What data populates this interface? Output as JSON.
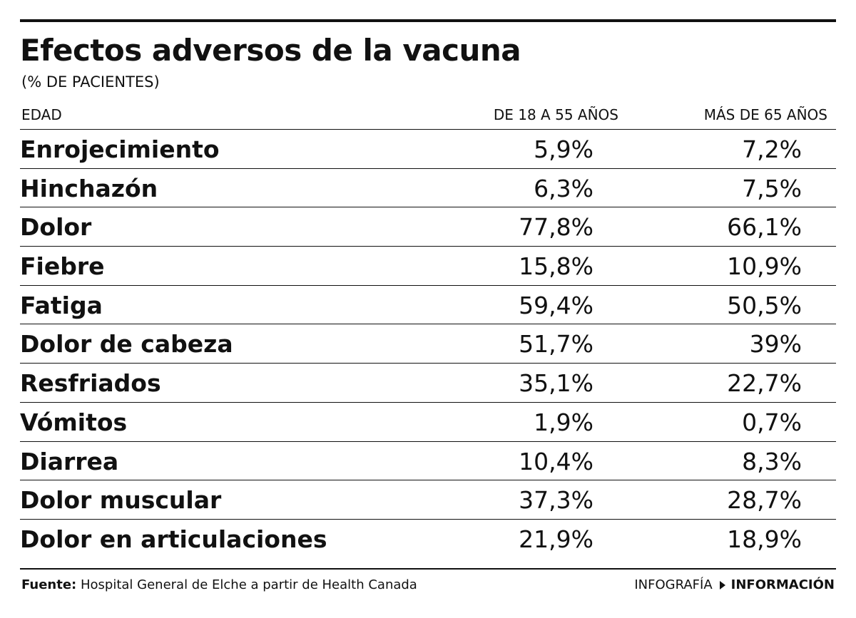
{
  "chart_data": {
    "type": "table",
    "title": "Efectos adversos de la vacuna",
    "subtitle": "(% DE PACIENTES)",
    "columns": [
      "EDAD",
      "DE 18 A 55 AÑOS",
      "MÁS DE 65 AÑOS"
    ],
    "rows": [
      {
        "label": "Enrojecimiento",
        "values": [
          "5,9%",
          "7,2%"
        ]
      },
      {
        "label": "Hinchazón",
        "values": [
          "6,3%",
          "7,5%"
        ]
      },
      {
        "label": "Dolor",
        "values": [
          "77,8%",
          "66,1%"
        ]
      },
      {
        "label": "Fiebre",
        "values": [
          "15,8%",
          "10,9%"
        ]
      },
      {
        "label": "Fatiga",
        "values": [
          "59,4%",
          "50,5%"
        ]
      },
      {
        "label": "Dolor de cabeza",
        "values": [
          "51,7%",
          "39%"
        ]
      },
      {
        "label": "Resfriados",
        "values": [
          "35,1%",
          "22,7%"
        ]
      },
      {
        "label": "Vómitos",
        "values": [
          "1,9%",
          "0,7%"
        ]
      },
      {
        "label": "Diarrea",
        "values": [
          "10,4%",
          "8,3%"
        ]
      },
      {
        "label": "Dolor muscular",
        "values": [
          "37,3%",
          "28,7%"
        ]
      },
      {
        "label": "Dolor en articulaciones",
        "values": [
          "21,9%",
          "18,9%"
        ]
      }
    ]
  },
  "footer": {
    "source_label": "Fuente:",
    "source_text": "Hospital General de Elche a partir de Health Canada",
    "credit_prefix": "INFOGRAFÍA",
    "credit_brand": "INFORMACIÓN"
  },
  "colors": {
    "text": "#111111",
    "background": "#ffffff"
  }
}
